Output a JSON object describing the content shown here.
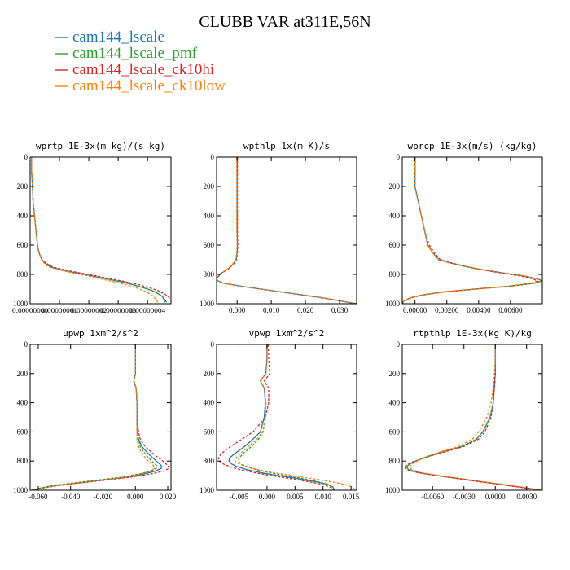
{
  "title": "CLUBB VAR at311E,56N",
  "legend": [
    {
      "label": "cam144_lscale",
      "color": "#1f77b4"
    },
    {
      "label": "cam144_lscale_pmf",
      "color": "#2ca02c"
    },
    {
      "label": "cam144_lscale_ck10hi",
      "color": "#d62728"
    },
    {
      "label": "cam144_lscale_ck10low",
      "color": "#ff7f0e"
    }
  ],
  "chart_data": [
    {
      "type": "line",
      "title": "wprtp  1E-3x(m kg)/(s kg)",
      "xlim": [
        0,
        4.8e-08
      ],
      "ylim": [
        1000,
        0
      ],
      "xtick_labels": [
        "0.00000000",
        "0.00000001",
        "0.00000002",
        "0.00000003",
        "0.00000004"
      ],
      "ytick_labels": [
        "0",
        "200",
        "400",
        "600",
        "800",
        "1000"
      ],
      "yticks": [
        0,
        200,
        400,
        600,
        800,
        1000
      ],
      "y": [
        0,
        100,
        200,
        300,
        400,
        500,
        600,
        650,
        700,
        730,
        750,
        770,
        790,
        810,
        830,
        850,
        870,
        890,
        910,
        930,
        950,
        970,
        990
      ],
      "series": [
        {
          "color": "#1f77b4",
          "dash": false,
          "values": [
            5e-10,
            5e-10,
            8e-10,
            1e-09,
            1.5e-09,
            2e-09,
            2.5e-09,
            3e-09,
            4e-09,
            5.5e-09,
            7e-09,
            1.1e-08,
            1.6e-08,
            2.1e-08,
            2.6e-08,
            3.1e-08,
            3.5e-08,
            3.85e-08,
            4.15e-08,
            4.35e-08,
            4.5e-08,
            4.58e-08,
            4.65e-08
          ]
        },
        {
          "color": "#2ca02c",
          "dash": true,
          "values": [
            5e-10,
            5e-10,
            8e-10,
            1e-09,
            1.5e-09,
            2e-09,
            2.5e-09,
            3e-09,
            4e-09,
            5.5e-09,
            7e-09,
            1.1e-08,
            1.6e-08,
            2.1e-08,
            2.6e-08,
            3.1e-08,
            3.5e-08,
            3.85e-08,
            4.15e-08,
            4.35e-08,
            4.5e-08,
            4.55e-08,
            4.6e-08
          ]
        },
        {
          "color": "#d62728",
          "dash": true,
          "values": [
            5e-10,
            5e-10,
            8e-10,
            1e-09,
            1.5e-09,
            2e-09,
            2.5e-09,
            3e-09,
            4e-09,
            6e-09,
            7.8e-09,
            1.2e-08,
            1.7e-08,
            2.25e-08,
            2.75e-08,
            3.25e-08,
            3.7e-08,
            4.05e-08,
            4.35e-08,
            4.55e-08,
            4.7e-08,
            4.8e-08,
            4.8e-08
          ]
        },
        {
          "color": "#ff7f0e",
          "dash": true,
          "values": [
            5e-10,
            5e-10,
            8e-10,
            1e-09,
            1.5e-09,
            2e-09,
            2.5e-09,
            3e-09,
            4e-09,
            5e-09,
            6.5e-09,
            1e-08,
            1.45e-08,
            1.95e-08,
            2.4e-08,
            2.85e-08,
            3.25e-08,
            3.6e-08,
            3.85e-08,
            4.05e-08,
            4.2e-08,
            4.28e-08,
            4.35e-08
          ]
        }
      ]
    },
    {
      "type": "line",
      "title": "wpthlp  1x(m K)/s",
      "xlim": [
        -0.006,
        0.035
      ],
      "ylim": [
        1000,
        0
      ],
      "xticks": [
        0,
        0.01,
        0.02,
        0.03
      ],
      "xtick_labels": [
        "0.000",
        "0.010",
        "0.020",
        "0.030"
      ],
      "ytick_labels": [
        "0",
        "200",
        "400",
        "600",
        "800",
        "1000"
      ],
      "yticks": [
        0,
        200,
        400,
        600,
        800,
        1000
      ],
      "y": [
        0,
        100,
        200,
        300,
        400,
        500,
        600,
        650,
        700,
        730,
        760,
        790,
        820,
        840,
        860,
        880,
        900,
        920,
        940,
        960,
        980,
        1000
      ],
      "series": [
        {
          "color": "#1f77b4",
          "dash": false,
          "values": [
            0,
            0,
            0,
            0,
            0,
            0,
            0.0001,
            0,
            -0.0003,
            -0.0012,
            -0.0025,
            -0.0045,
            -0.0058,
            -0.006,
            -0.004,
            0.001,
            0.007,
            0.013,
            0.019,
            0.025,
            0.03,
            0.035
          ]
        },
        {
          "color": "#2ca02c",
          "dash": true,
          "values": [
            0,
            0,
            0,
            0,
            0,
            0,
            0.0001,
            0,
            -0.0003,
            -0.0012,
            -0.0025,
            -0.0045,
            -0.0058,
            -0.006,
            -0.004,
            0.001,
            0.007,
            0.013,
            0.019,
            0.025,
            0.03,
            0.035
          ]
        },
        {
          "color": "#d62728",
          "dash": true,
          "values": [
            0.0001,
            0.0001,
            0.0001,
            0.0001,
            0.0001,
            0.0001,
            0.0002,
            0.0001,
            -0.0002,
            -0.0011,
            -0.0024,
            -0.0044,
            -0.0057,
            -0.0059,
            -0.0039,
            0.0011,
            0.0071,
            0.0131,
            0.0191,
            0.0251,
            0.0301,
            0.035
          ]
        },
        {
          "color": "#ff7f0e",
          "dash": true,
          "values": [
            -0.0001,
            -0.0001,
            -0.0001,
            -0.0001,
            -0.0001,
            -0.0001,
            0,
            -0.0001,
            -0.0004,
            -0.0013,
            -0.0026,
            -0.0046,
            -0.0059,
            -0.006,
            -0.0041,
            0.0009,
            0.0069,
            0.0129,
            0.0189,
            0.0249,
            0.0299,
            0.035
          ]
        }
      ]
    },
    {
      "type": "line",
      "title": "wprcp  1E-3x(m/s) (kg/kg)",
      "xlim": [
        -0.0008,
        0.008
      ],
      "ylim": [
        1000,
        0
      ],
      "xticks": [
        0,
        0.002,
        0.004,
        0.006
      ],
      "xtick_labels": [
        "0.00000",
        "0.00200",
        "0.00400",
        "0.00600"
      ],
      "ytick_labels": [
        "0",
        "200",
        "400",
        "600",
        "800",
        "1000"
      ],
      "yticks": [
        0,
        200,
        400,
        600,
        800,
        1000
      ],
      "y": [
        0,
        100,
        200,
        300,
        400,
        500,
        600,
        650,
        700,
        730,
        760,
        790,
        810,
        830,
        845,
        860,
        880,
        900,
        920,
        940,
        960,
        980,
        1000
      ],
      "series": [
        {
          "color": "#1f77b4",
          "dash": false,
          "values": [
            0,
            0,
            0,
            0.0002,
            0.0004,
            0.0006,
            0.0008,
            0.0011,
            0.0015,
            0.0025,
            0.0038,
            0.0055,
            0.0068,
            0.0077,
            0.008,
            0.0075,
            0.006,
            0.0038,
            0.0018,
            0.0005,
            -0.0003,
            -0.0007,
            -0.0008
          ]
        },
        {
          "color": "#2ca02c",
          "dash": true,
          "values": [
            0,
            0,
            0,
            0.0002,
            0.0004,
            0.0006,
            0.0008,
            0.0011,
            0.0015,
            0.0025,
            0.0038,
            0.0055,
            0.0068,
            0.0077,
            0.008,
            0.0075,
            0.006,
            0.0038,
            0.0018,
            0.0005,
            -0.0003,
            -0.0007,
            -0.0008
          ]
        },
        {
          "color": "#d62728",
          "dash": true,
          "values": [
            0,
            0,
            0,
            0.0002,
            0.0004,
            0.0006,
            0.0009,
            0.0012,
            0.0016,
            0.0026,
            0.0038,
            0.0054,
            0.0066,
            0.0074,
            0.0077,
            0.0073,
            0.0059,
            0.0037,
            0.0017,
            0.0005,
            -0.0003,
            -0.0007,
            -0.0008
          ]
        },
        {
          "color": "#ff7f0e",
          "dash": true,
          "values": [
            0,
            0,
            0,
            0.0002,
            0.0004,
            0.0006,
            0.0008,
            0.0011,
            0.0015,
            0.0025,
            0.0039,
            0.0056,
            0.0069,
            0.0077,
            0.0079,
            0.0075,
            0.0061,
            0.0039,
            0.0019,
            0.0005,
            -0.0003,
            -0.0007,
            -0.0008
          ]
        }
      ]
    },
    {
      "type": "line",
      "title": "upwp  1xm^2/s^2",
      "xlim": [
        -0.065,
        0.022
      ],
      "ylim": [
        1000,
        0
      ],
      "xticks": [
        -0.06,
        -0.04,
        -0.02,
        0,
        0.02
      ],
      "xtick_labels": [
        "-0.060",
        "-0.040",
        "-0.020",
        "0.000",
        "0.020"
      ],
      "ytick_labels": [
        "0",
        "200",
        "400",
        "600",
        "800",
        "1000"
      ],
      "yticks": [
        0,
        200,
        400,
        600,
        800,
        1000
      ],
      "y": [
        0,
        100,
        200,
        250,
        300,
        400,
        500,
        600,
        650,
        700,
        750,
        800,
        830,
        850,
        870,
        890,
        910,
        930,
        950,
        970,
        990,
        1000
      ],
      "series": [
        {
          "color": "#1f77b4",
          "dash": false,
          "values": [
            0,
            0,
            0,
            -0.001,
            0.0005,
            0.001,
            0.001,
            0.001,
            0.002,
            0.004,
            0.008,
            0.013,
            0.016,
            0.016,
            0.012,
            0.005,
            -0.006,
            -0.02,
            -0.035,
            -0.05,
            -0.06,
            -0.064
          ]
        },
        {
          "color": "#2ca02c",
          "dash": true,
          "values": [
            0,
            0,
            0,
            -0.001,
            0.0005,
            0.001,
            0.001,
            0.001,
            0.002,
            0.003,
            0.006,
            0.01,
            0.013,
            0.013,
            0.009,
            0.002,
            -0.009,
            -0.023,
            -0.038,
            -0.052,
            -0.061,
            -0.064
          ]
        },
        {
          "color": "#d62728",
          "dash": true,
          "values": [
            0,
            0,
            0,
            -0.001,
            0.0005,
            0.001,
            0.001,
            0.002,
            0.003,
            0.006,
            0.011,
            0.017,
            0.02,
            0.021,
            0.017,
            0.009,
            -0.003,
            -0.018,
            -0.034,
            -0.049,
            -0.06,
            -0.064
          ]
        },
        {
          "color": "#ff7f0e",
          "dash": true,
          "values": [
            0,
            0,
            0,
            -0.001,
            0.0005,
            0.001,
            0.001,
            0.001,
            0.001,
            0.002,
            0.004,
            0.008,
            0.011,
            0.012,
            0.009,
            0.003,
            -0.007,
            -0.021,
            -0.036,
            -0.05,
            -0.06,
            -0.064
          ]
        }
      ]
    },
    {
      "type": "line",
      "title": "vpwp  1xm^2/s^2",
      "xlim": [
        -0.009,
        0.016
      ],
      "ylim": [
        1000,
        0
      ],
      "xticks": [
        -0.005,
        0,
        0.005,
        0.01,
        0.015
      ],
      "xtick_labels": [
        "-0.005",
        "0.000",
        "0.005",
        "0.010",
        "0.015"
      ],
      "ytick_labels": [
        "0",
        "200",
        "400",
        "600",
        "800",
        "1000"
      ],
      "yticks": [
        0,
        200,
        400,
        600,
        800,
        1000
      ],
      "y": [
        0,
        100,
        200,
        250,
        300,
        400,
        500,
        600,
        650,
        700,
        750,
        780,
        800,
        820,
        840,
        860,
        880,
        900,
        920,
        940,
        960,
        980,
        1000
      ],
      "series": [
        {
          "color": "#1f77b4",
          "dash": false,
          "values": [
            0,
            0,
            -0.0002,
            -0.0012,
            -0.0005,
            -0.0003,
            -0.0005,
            -0.0012,
            -0.0025,
            -0.004,
            -0.0058,
            -0.0067,
            -0.0068,
            -0.0063,
            -0.0052,
            -0.0035,
            -0.001,
            0.002,
            0.0055,
            0.0085,
            0.0108,
            0.0118,
            0.012
          ]
        },
        {
          "color": "#2ca02c",
          "dash": true,
          "values": [
            0,
            0,
            -0.0002,
            -0.0012,
            -0.0005,
            -0.0002,
            -0.0003,
            -0.0007,
            -0.0015,
            -0.0028,
            -0.0043,
            -0.005,
            -0.0051,
            -0.0046,
            -0.0035,
            -0.0018,
            0.0005,
            0.0033,
            0.0063,
            0.009,
            0.0108,
            0.0118,
            0.012
          ]
        },
        {
          "color": "#d62728",
          "dash": true,
          "values": [
            0.0002,
            0.0003,
            0.0005,
            -0.0005,
            0.0003,
            0.0003,
            -0.0003,
            -0.0025,
            -0.0045,
            -0.0065,
            -0.0082,
            -0.0087,
            -0.0085,
            -0.0078,
            -0.0065,
            -0.0047,
            -0.0022,
            0.0008,
            0.0042,
            0.0073,
            0.0098,
            0.0113,
            0.012
          ]
        },
        {
          "color": "#ff7f0e",
          "dash": true,
          "values": [
            0,
            0,
            -0.0002,
            -0.0012,
            -0.0005,
            -0.0002,
            -0.0003,
            -0.0008,
            -0.0018,
            -0.0033,
            -0.0048,
            -0.0056,
            -0.0057,
            -0.005,
            -0.0036,
            -0.0015,
            0.0013,
            0.0045,
            0.008,
            0.0112,
            0.0138,
            0.0153,
            0.0158
          ]
        }
      ]
    },
    {
      "type": "line",
      "title": "rtpthlp  1E-3x(kg K)/kg",
      "xlim": [
        -0.0089,
        0.0045
      ],
      "ylim": [
        1000,
        0
      ],
      "xticks": [
        -0.006,
        -0.003,
        0,
        0.003
      ],
      "xtick_labels": [
        "-0.0060",
        "-0.0030",
        "0.0000",
        "0.0030"
      ],
      "ytick_labels": [
        "0",
        "200",
        "400",
        "600",
        "800",
        "1000"
      ],
      "yticks": [
        0,
        200,
        400,
        600,
        800,
        1000
      ],
      "y": [
        0,
        100,
        200,
        300,
        400,
        500,
        600,
        650,
        700,
        740,
        770,
        800,
        820,
        840,
        860,
        880,
        900,
        920,
        940,
        960,
        980,
        1000
      ],
      "series": [
        {
          "color": "#1f77b4",
          "dash": false,
          "values": [
            0,
            0,
            0,
            -0.0001,
            -0.0002,
            -0.0005,
            -0.0012,
            -0.0018,
            -0.0032,
            -0.0052,
            -0.0065,
            -0.0076,
            -0.0082,
            -0.0085,
            -0.0083,
            -0.0072,
            -0.0055,
            -0.0035,
            -0.0015,
            0.0005,
            0.0025,
            0.0044
          ]
        },
        {
          "color": "#2ca02c",
          "dash": true,
          "values": [
            0,
            0,
            0,
            -0.0001,
            -0.0002,
            -0.0005,
            -0.0012,
            -0.0018,
            -0.0032,
            -0.0052,
            -0.0065,
            -0.0076,
            -0.0082,
            -0.0085,
            -0.0083,
            -0.0072,
            -0.0055,
            -0.0035,
            -0.0015,
            0.0005,
            0.0025,
            0.0044
          ]
        },
        {
          "color": "#d62728",
          "dash": true,
          "values": [
            0,
            0,
            0,
            -0.0001,
            -0.0002,
            -0.0004,
            -0.001,
            -0.0016,
            -0.003,
            -0.005,
            -0.0064,
            -0.0077,
            -0.0084,
            -0.0087,
            -0.0085,
            -0.0074,
            -0.0056,
            -0.0036,
            -0.0016,
            0.0004,
            0.0024,
            0.0044
          ]
        },
        {
          "color": "#ff7f0e",
          "dash": true,
          "values": [
            0,
            0,
            -0.0001,
            -0.0002,
            -0.0004,
            -0.0008,
            -0.0016,
            -0.0022,
            -0.0035,
            -0.0054,
            -0.0066,
            -0.0075,
            -0.008,
            -0.0082,
            -0.008,
            -0.007,
            -0.0053,
            -0.0033,
            -0.0013,
            0.0007,
            0.0027,
            0.0044
          ]
        }
      ]
    }
  ]
}
